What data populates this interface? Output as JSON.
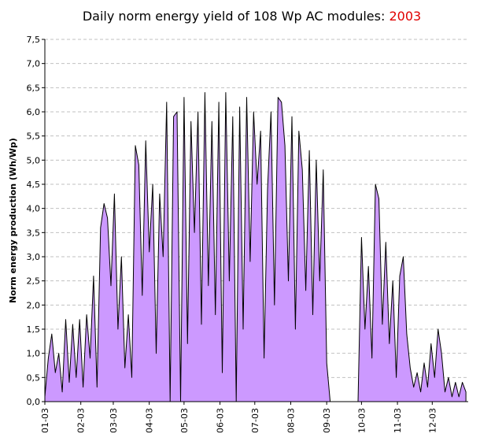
{
  "chart_data": {
    "type": "area",
    "title": "Daily norm energy yield of 108 Wp AC modules: ",
    "title_year": "2003",
    "ylabel": "Norm energy production (Wh/Wp)",
    "color": "#cc99ff",
    "grid": true,
    "xlim": [
      1,
      366
    ],
    "ylim": [
      0,
      7.5
    ],
    "xticks": [
      {
        "value": 1,
        "label": "01-03"
      },
      {
        "value": 32,
        "label": "02-03"
      },
      {
        "value": 60,
        "label": "03-03"
      },
      {
        "value": 91,
        "label": "04-03"
      },
      {
        "value": 121,
        "label": "05-03"
      },
      {
        "value": 152,
        "label": "06-03"
      },
      {
        "value": 182,
        "label": "07-03"
      },
      {
        "value": 213,
        "label": "08-03"
      },
      {
        "value": 244,
        "label": "09-03"
      },
      {
        "value": 274,
        "label": "10-03"
      },
      {
        "value": 305,
        "label": "11-03"
      },
      {
        "value": 335,
        "label": "12-03"
      }
    ],
    "yticks": [
      {
        "value": 0,
        "label": "0,0"
      },
      {
        "value": 0.5,
        "label": "0,5"
      },
      {
        "value": 1,
        "label": "1,0"
      },
      {
        "value": 1.5,
        "label": "1,5"
      },
      {
        "value": 2,
        "label": "2,0"
      },
      {
        "value": 2.5,
        "label": "2,5"
      },
      {
        "value": 3,
        "label": "3,0"
      },
      {
        "value": 3.5,
        "label": "3,5"
      },
      {
        "value": 4,
        "label": "4,0"
      },
      {
        "value": 4.5,
        "label": "4,5"
      },
      {
        "value": 5,
        "label": "5,0"
      },
      {
        "value": 5.5,
        "label": "5,5"
      },
      {
        "value": 6,
        "label": "6,0"
      },
      {
        "value": 6.5,
        "label": "6,5"
      },
      {
        "value": 7,
        "label": "7,0"
      },
      {
        "value": 7.5,
        "label": "7,5"
      }
    ],
    "x": [
      1,
      4,
      7,
      10,
      13,
      16,
      19,
      22,
      25,
      28,
      31,
      34,
      37,
      40,
      43,
      46,
      49,
      52,
      55,
      58,
      61,
      64,
      67,
      70,
      73,
      76,
      79,
      82,
      85,
      88,
      91,
      94,
      97,
      100,
      103,
      106,
      109,
      112,
      115,
      118,
      121,
      124,
      127,
      130,
      133,
      136,
      139,
      142,
      145,
      148,
      151,
      154,
      157,
      160,
      163,
      166,
      169,
      172,
      175,
      178,
      181,
      184,
      187,
      190,
      193,
      196,
      199,
      202,
      205,
      208,
      211,
      214,
      217,
      220,
      223,
      226,
      229,
      232,
      235,
      238,
      241,
      244,
      247,
      250,
      253,
      256,
      259,
      262,
      265,
      268,
      271,
      274,
      277,
      280,
      283,
      286,
      289,
      292,
      295,
      298,
      301,
      304,
      307,
      310,
      313,
      316,
      319,
      322,
      325,
      328,
      331,
      334,
      337,
      340,
      343,
      346,
      349,
      352,
      355,
      358,
      361,
      364
    ],
    "values": [
      0.1,
      0.9,
      1.4,
      0.6,
      1.0,
      0.2,
      1.7,
      0.4,
      1.6,
      0.5,
      1.7,
      0.3,
      1.8,
      0.9,
      2.6,
      0.3,
      3.6,
      4.1,
      3.8,
      2.4,
      4.3,
      1.5,
      3.0,
      0.7,
      1.8,
      0.5,
      5.3,
      4.9,
      2.2,
      5.4,
      3.1,
      4.5,
      1.0,
      4.3,
      3.0,
      6.2,
      0,
      5.9,
      6.0,
      0,
      6.3,
      1.2,
      5.8,
      3.5,
      6.0,
      1.6,
      6.4,
      2.4,
      5.8,
      1.8,
      6.2,
      0.6,
      6.4,
      2.5,
      5.9,
      0,
      6.1,
      1.5,
      6.3,
      2.9,
      6.0,
      4.5,
      5.6,
      0.9,
      4.4,
      6.0,
      2.0,
      6.3,
      6.2,
      5.3,
      2.5,
      5.9,
      1.5,
      5.6,
      4.8,
      2.3,
      5.2,
      1.8,
      5.0,
      2.5,
      4.8,
      0.8,
      0,
      0,
      0,
      0,
      0,
      0,
      0,
      0,
      0,
      3.4,
      1.5,
      2.8,
      0.9,
      4.5,
      4.2,
      1.6,
      3.3,
      1.2,
      2.5,
      0.5,
      2.6,
      3.0,
      1.4,
      0.7,
      0.3,
      0.6,
      0.2,
      0.8,
      0.3,
      1.2,
      0.5,
      1.5,
      1.0,
      0.2,
      0.5,
      0.1,
      0.4,
      0.1,
      0.4,
      0.2
    ]
  }
}
